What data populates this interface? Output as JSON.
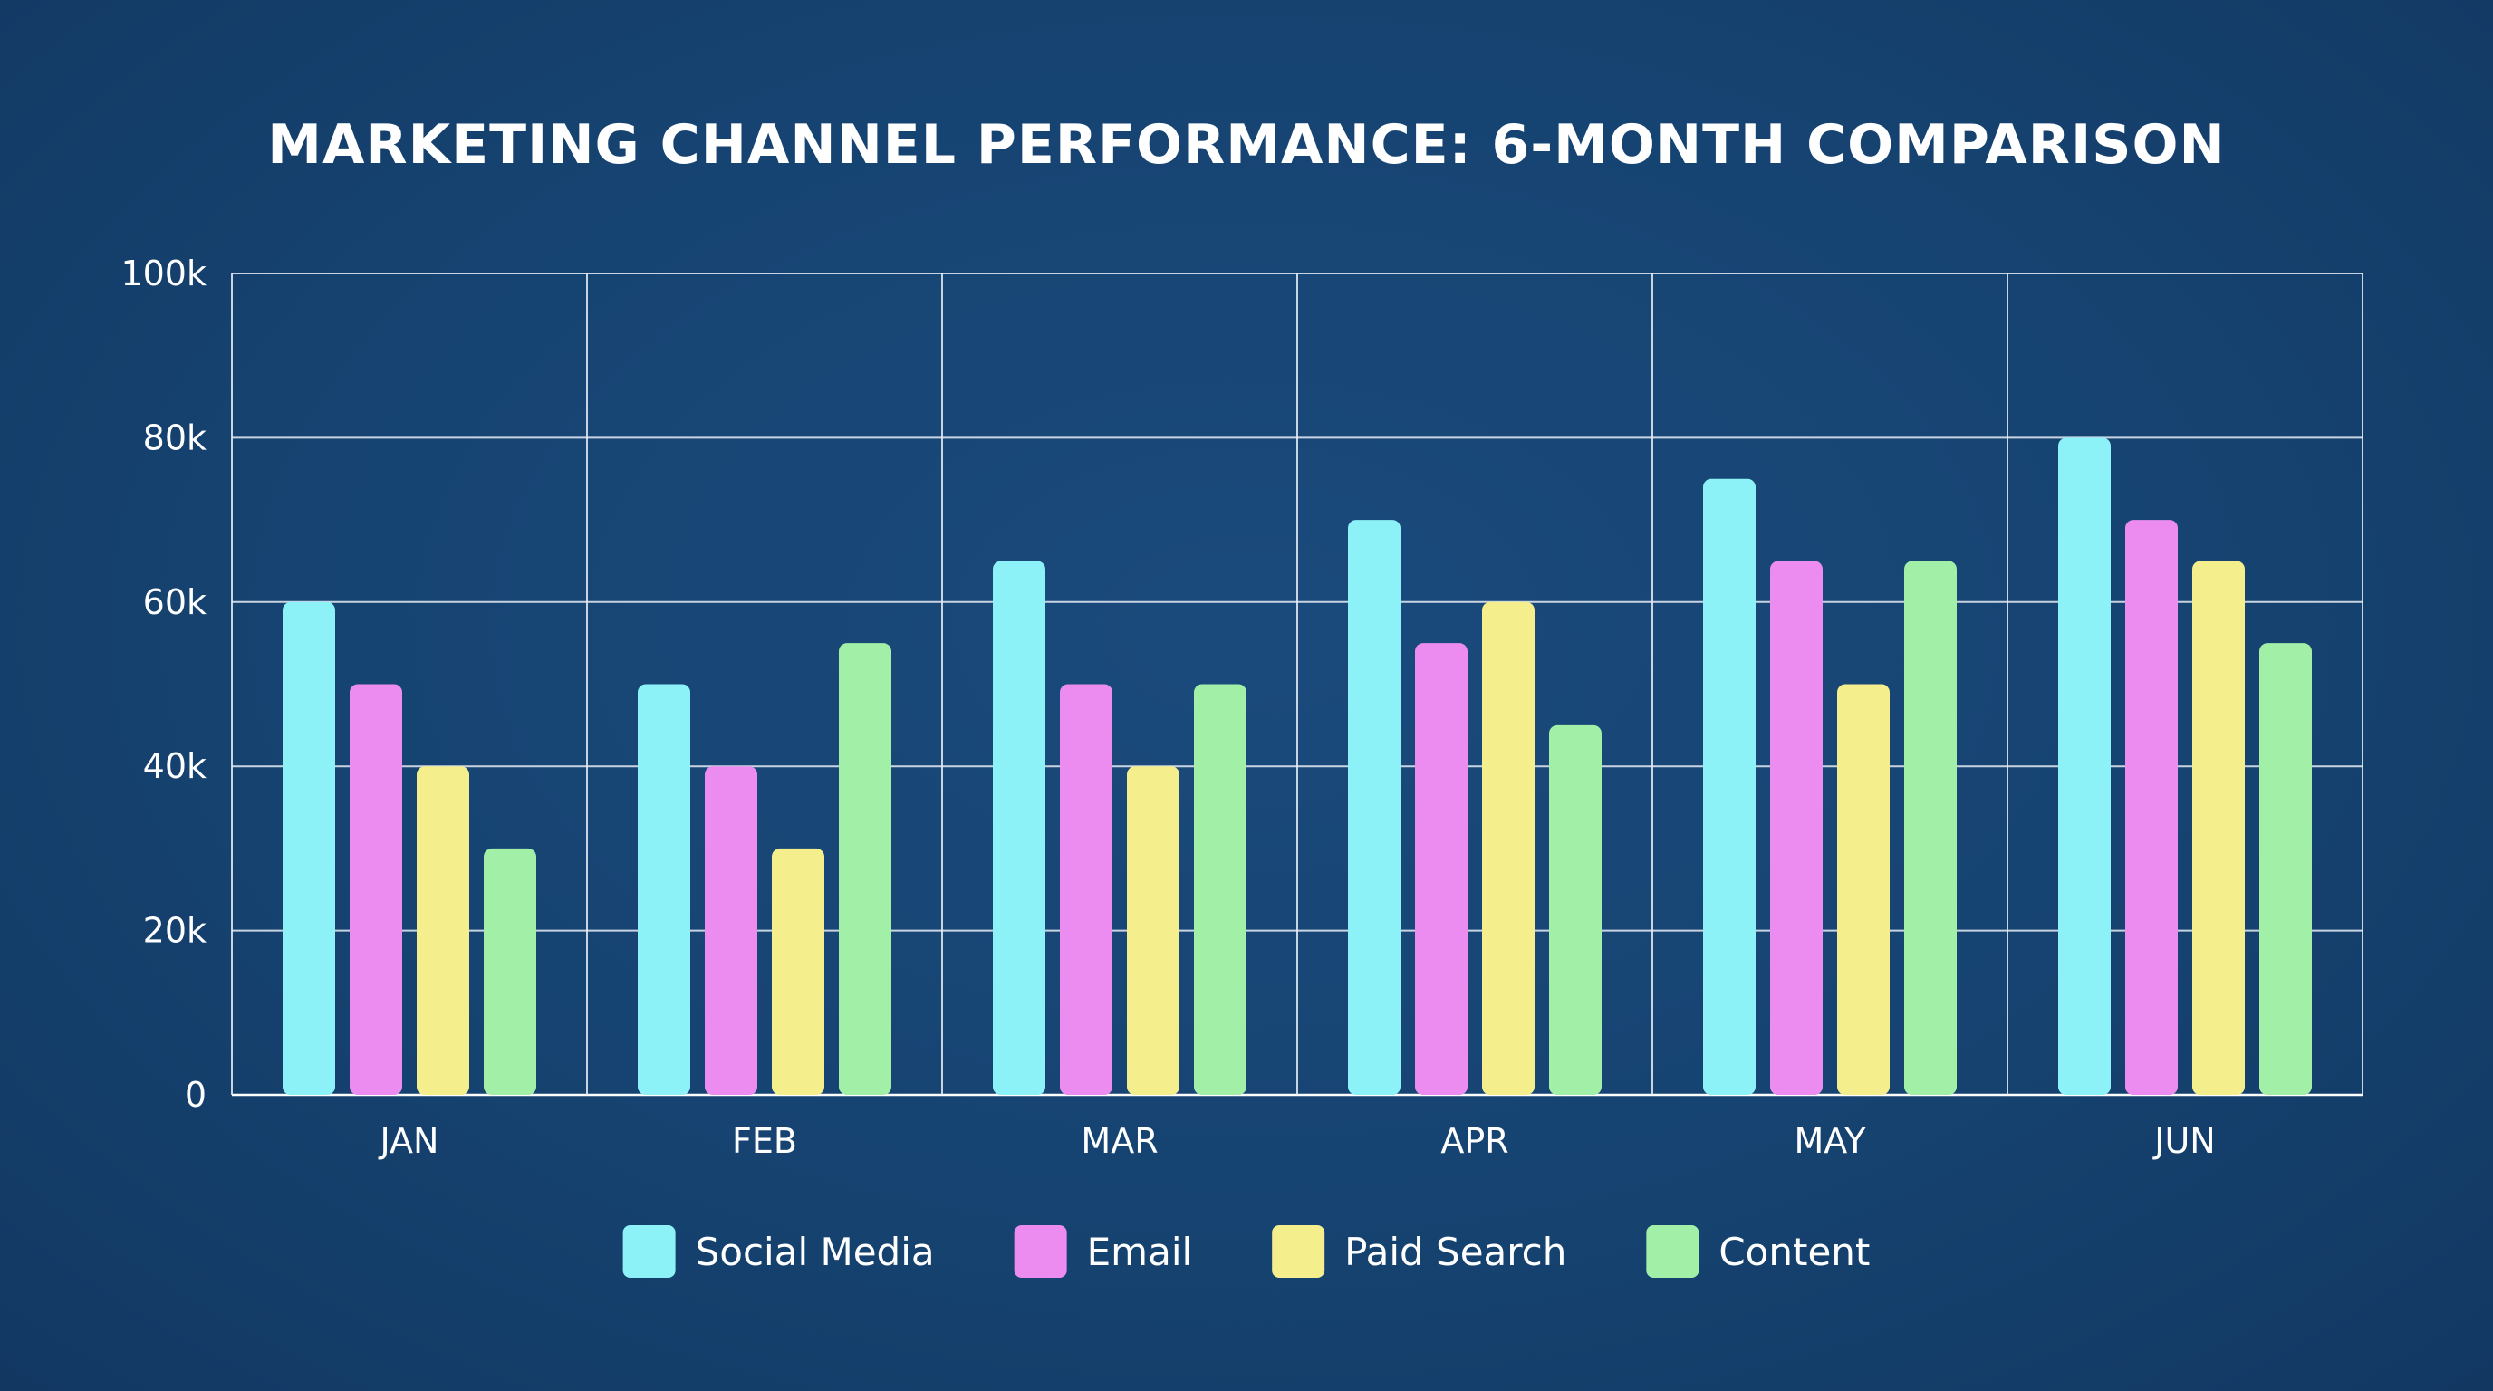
{
  "chart_data": {
    "type": "bar",
    "title": "MARKETING CHANNEL PERFORMANCE: 6-MONTH COMPARISON",
    "xlabel": "",
    "ylabel": "",
    "categories": [
      "JAN",
      "FEB",
      "MAR",
      "APR",
      "MAY",
      "JUN"
    ],
    "ylim": [
      0,
      100000
    ],
    "yticks": [
      {
        "value": 0,
        "label": "0"
      },
      {
        "value": 20000,
        "label": "20k"
      },
      {
        "value": 40000,
        "label": "40k"
      },
      {
        "value": 60000,
        "label": "60k"
      },
      {
        "value": 80000,
        "label": "80k"
      },
      {
        "value": 100000,
        "label": "100k"
      }
    ],
    "grid": true,
    "legend_position": "bottom",
    "series": [
      {
        "name": "Social Media",
        "color": "#8cf2f8",
        "values": [
          60000,
          50000,
          65000,
          70000,
          75000,
          80000
        ]
      },
      {
        "name": "Email",
        "color": "#ec8cf0",
        "values": [
          50000,
          40000,
          50000,
          55000,
          65000,
          70000
        ]
      },
      {
        "name": "Paid Search",
        "color": "#f4ef8c",
        "values": [
          40000,
          30000,
          40000,
          60000,
          50000,
          65000
        ]
      },
      {
        "name": "Content",
        "color": "#a2f0a8",
        "values": [
          30000,
          55000,
          50000,
          45000,
          65000,
          55000
        ]
      }
    ]
  }
}
